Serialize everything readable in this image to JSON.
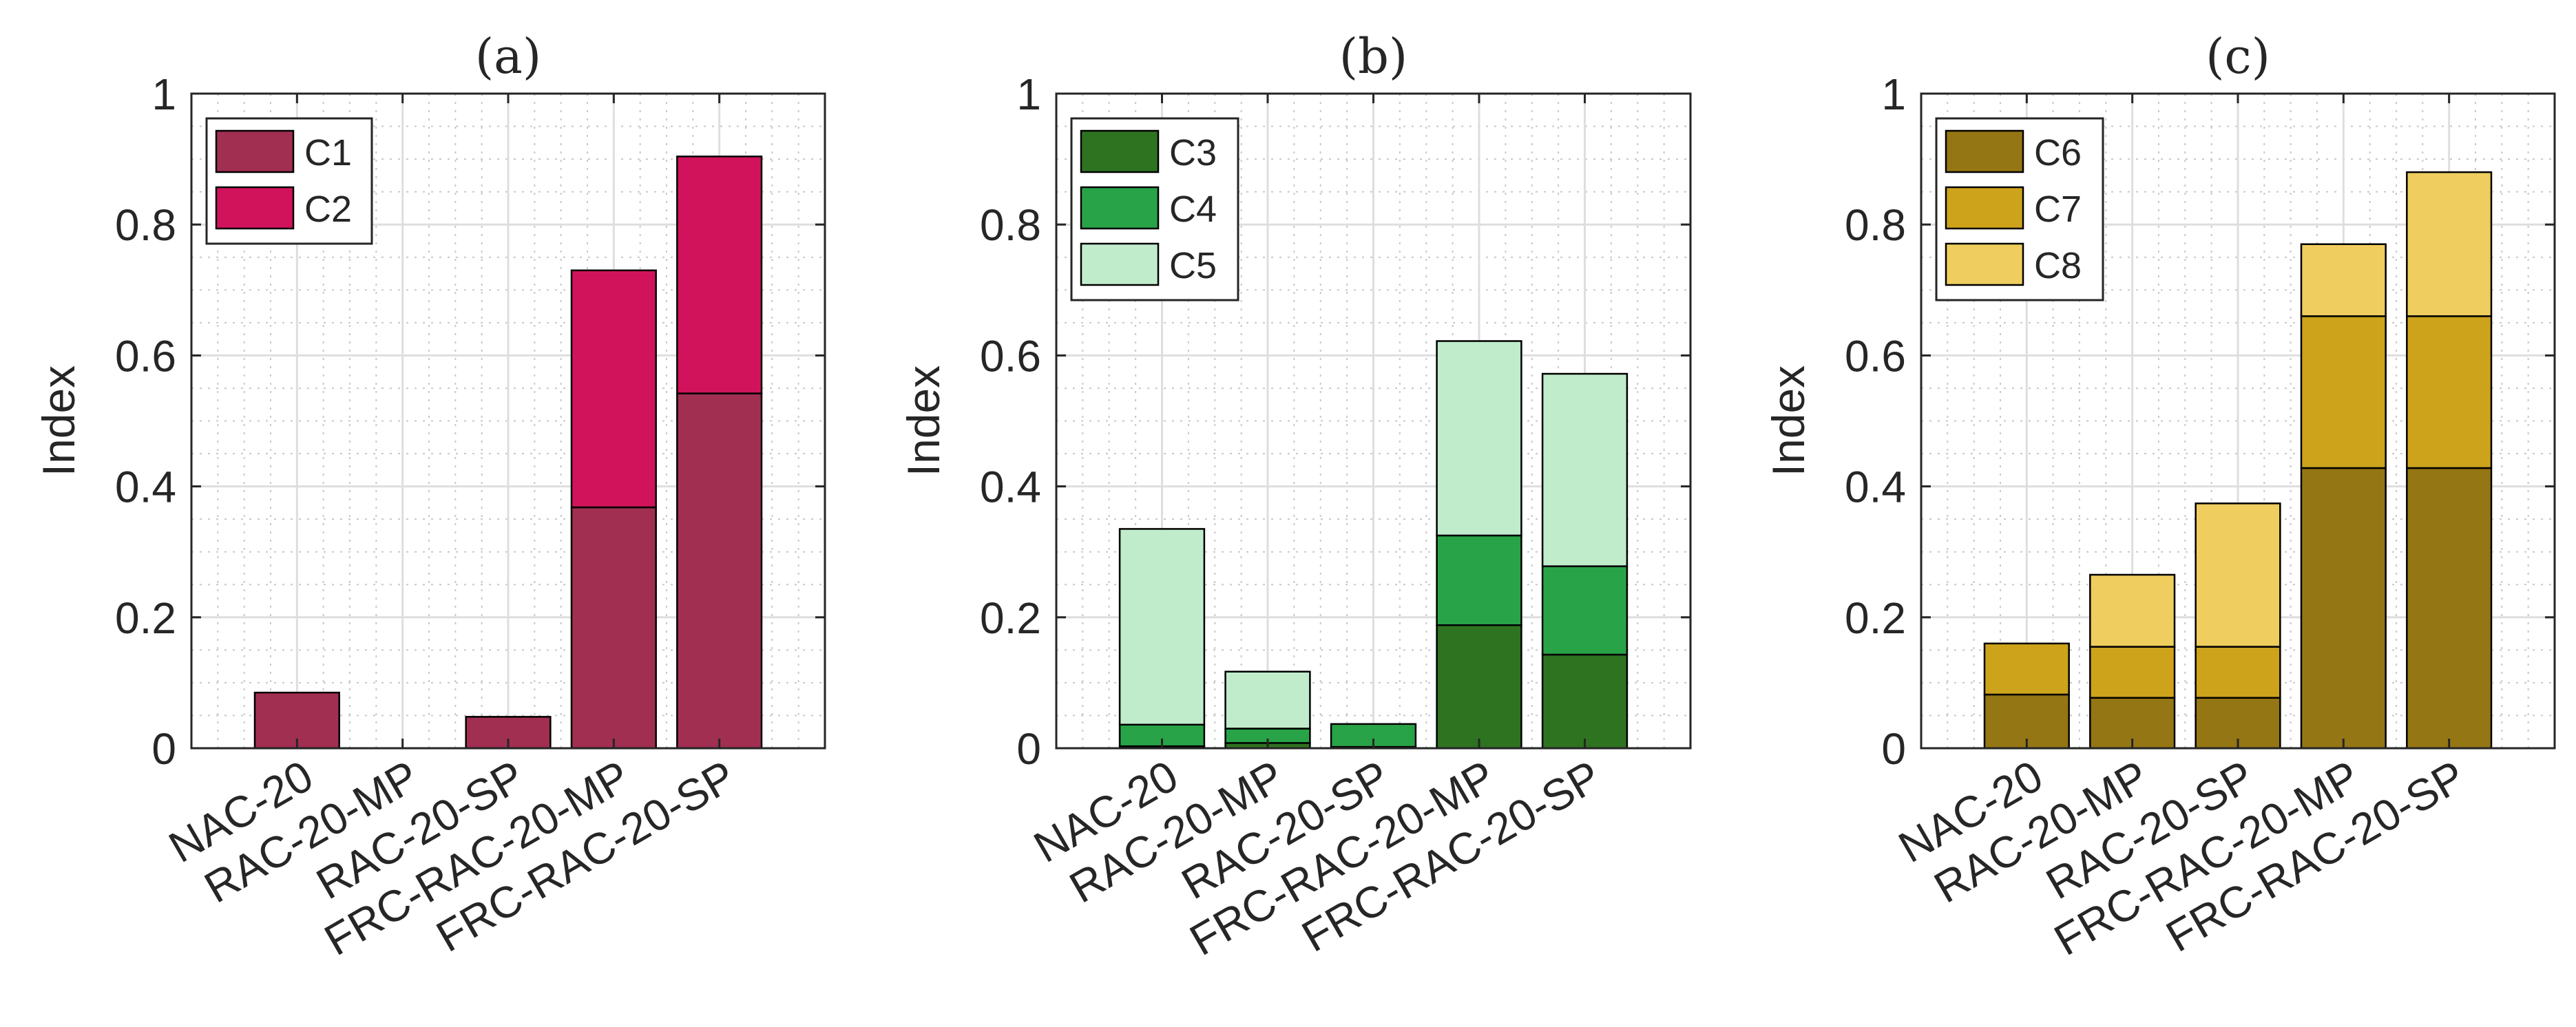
{
  "figure": {
    "ylabel": "Index",
    "categories": [
      "NAC-20",
      "RAC-20-MP",
      "RAC-20-SP",
      "FRC-RAC-20-MP",
      "FRC-RAC-20-SP"
    ],
    "yticks": [
      0,
      0.2,
      0.4,
      0.6,
      0.8,
      1
    ],
    "ytick_labels": [
      "0",
      "0.2",
      "0.4",
      "0.6",
      "0.8",
      "1"
    ]
  },
  "chart_data": [
    {
      "type": "bar",
      "stacked": true,
      "title": "(a)",
      "xlabel": "",
      "ylabel": "Index",
      "ylim": [
        0,
        1
      ],
      "grid": true,
      "legend_position": "top-left",
      "categories": [
        "NAC-20",
        "RAC-20-MP",
        "RAC-20-SP",
        "FRC-RAC-20-MP",
        "FRC-RAC-20-SP"
      ],
      "series": [
        {
          "name": "C1",
          "color": "#a12f52",
          "values": [
            0.085,
            0.0,
            0.048,
            0.368,
            0.542
          ]
        },
        {
          "name": "C2",
          "color": "#d1135b",
          "values": [
            0.0,
            0.0,
            0.0,
            0.362,
            0.362
          ]
        }
      ]
    },
    {
      "type": "bar",
      "stacked": true,
      "title": "(b)",
      "xlabel": "",
      "ylabel": "Index",
      "ylim": [
        0,
        1
      ],
      "grid": true,
      "legend_position": "top-left",
      "categories": [
        "NAC-20",
        "RAC-20-MP",
        "RAC-20-SP",
        "FRC-RAC-20-MP",
        "FRC-RAC-20-SP"
      ],
      "series": [
        {
          "name": "C3",
          "color": "#2e7320",
          "values": [
            0.003,
            0.008,
            0.002,
            0.188,
            0.143
          ]
        },
        {
          "name": "C4",
          "color": "#29a347",
          "values": [
            0.033,
            0.022,
            0.035,
            0.137,
            0.135
          ]
        },
        {
          "name": "C5",
          "color": "#c0eccb",
          "values": [
            0.299,
            0.087,
            0.0,
            0.297,
            0.294
          ]
        }
      ]
    },
    {
      "type": "bar",
      "stacked": true,
      "title": "(c)",
      "xlabel": "",
      "ylabel": "Index",
      "ylim": [
        0,
        1
      ],
      "grid": true,
      "legend_position": "top-left",
      "categories": [
        "NAC-20",
        "RAC-20-MP",
        "RAC-20-SP",
        "FRC-RAC-20-MP",
        "FRC-RAC-20-SP"
      ],
      "series": [
        {
          "name": "C6",
          "color": "#957614",
          "values": [
            0.082,
            0.077,
            0.077,
            0.428,
            0.428
          ]
        },
        {
          "name": "C7",
          "color": "#cda31b",
          "values": [
            0.078,
            0.078,
            0.078,
            0.232,
            0.232
          ]
        },
        {
          "name": "C8",
          "color": "#efcd5e",
          "values": [
            0.0,
            0.11,
            0.219,
            0.11,
            0.22
          ]
        }
      ]
    }
  ]
}
